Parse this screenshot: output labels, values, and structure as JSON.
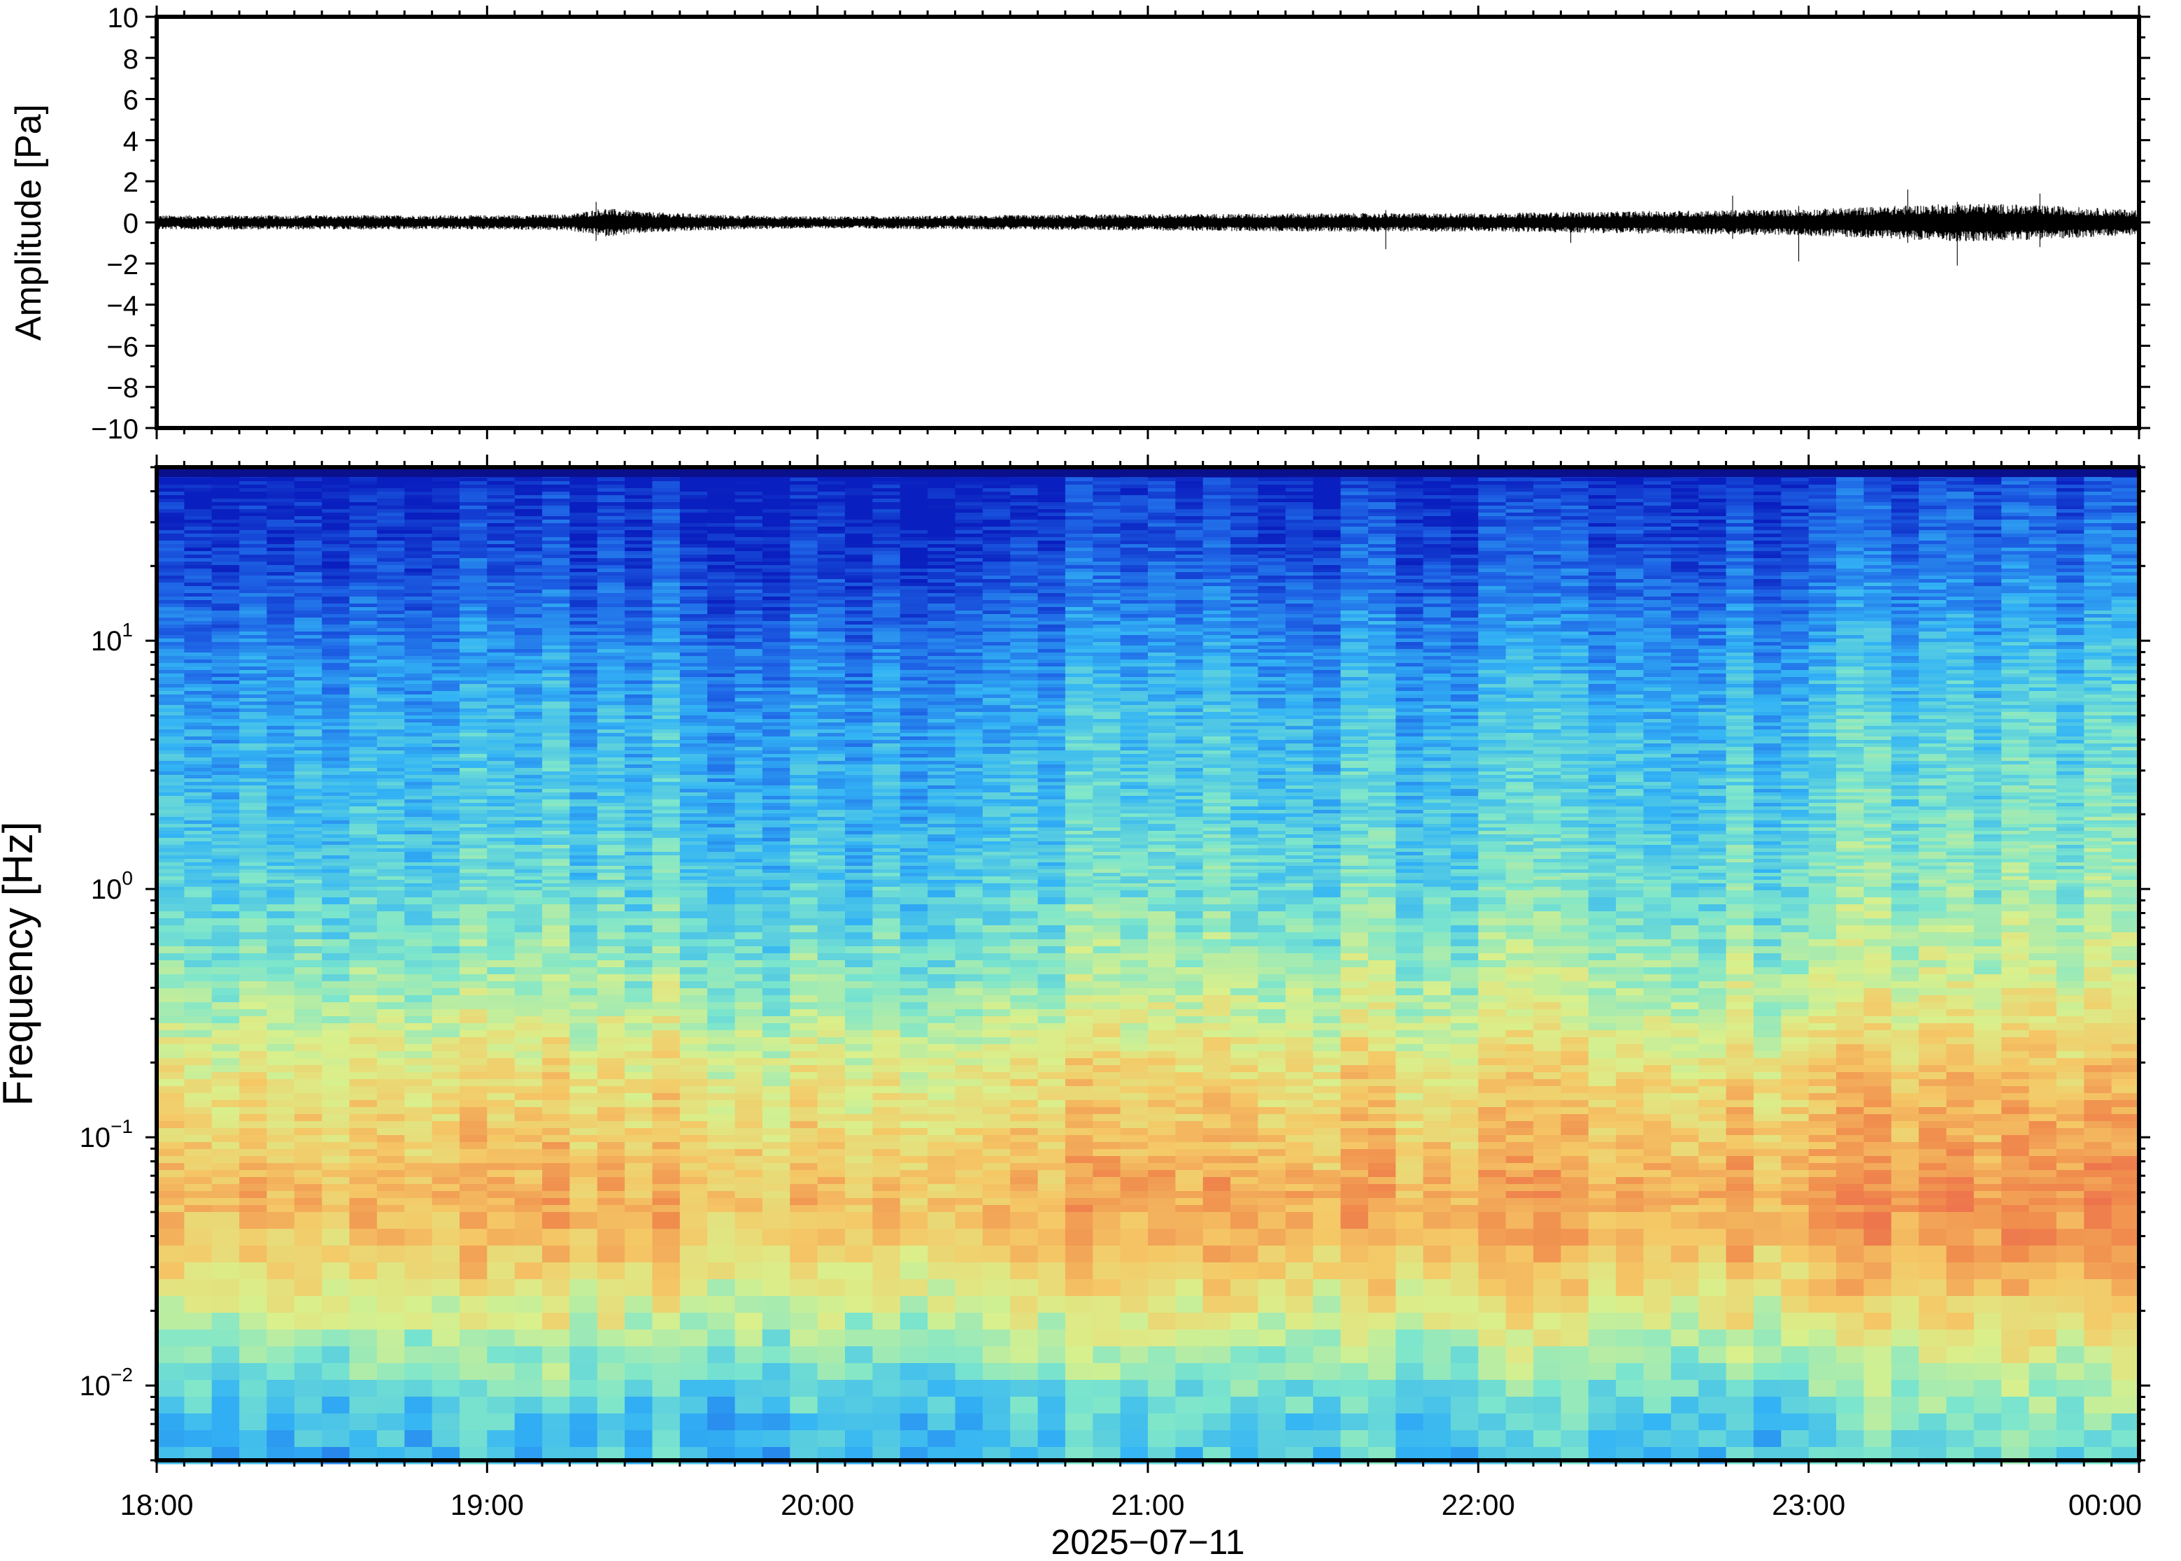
{
  "chart_data": [
    {
      "type": "line",
      "panel": "waveform",
      "ylabel": "Amplitude [Pa]",
      "ylim": [
        -10,
        10
      ],
      "y_ticks": [
        10,
        8,
        6,
        4,
        2,
        0,
        -2,
        -4,
        -6,
        -8,
        -10
      ],
      "y_tick_labels": [
        "10",
        "8",
        "6",
        "4",
        "2",
        "0",
        "−2",
        "−4",
        "−6",
        "−8",
        "−10"
      ],
      "x_range_hours": [
        18,
        24
      ],
      "envelope": {
        "x_hours": [
          18.0,
          18.5,
          19.0,
          19.25,
          19.35,
          19.5,
          19.75,
          20.0,
          20.5,
          21.0,
          21.5,
          22.0,
          22.5,
          23.0,
          23.25,
          23.5,
          23.75,
          24.0
        ],
        "amplitude_pa": [
          0.35,
          0.35,
          0.35,
          0.4,
          0.7,
          0.5,
          0.35,
          0.3,
          0.35,
          0.4,
          0.45,
          0.45,
          0.55,
          0.65,
          0.8,
          0.95,
          0.8,
          0.6
        ]
      },
      "spikes": [
        {
          "x_hours": 19.33,
          "min": -0.9,
          "max": 1.0
        },
        {
          "x_hours": 21.72,
          "min": -1.3,
          "max": 0.6
        },
        {
          "x_hours": 22.28,
          "min": -1.0,
          "max": 0.5
        },
        {
          "x_hours": 22.77,
          "min": -0.8,
          "max": 1.3
        },
        {
          "x_hours": 22.97,
          "min": -1.9,
          "max": 0.8
        },
        {
          "x_hours": 23.3,
          "min": -1.0,
          "max": 1.6
        },
        {
          "x_hours": 23.45,
          "min": -2.1,
          "max": 1.0
        },
        {
          "x_hours": 23.7,
          "min": -1.2,
          "max": 1.4
        }
      ]
    },
    {
      "type": "heatmap",
      "panel": "spectrogram",
      "ylabel": "Frequency [Hz]",
      "y_scale": "log",
      "ylim": [
        0.005,
        50
      ],
      "y_ticks": [
        10,
        1,
        0.1,
        0.01
      ],
      "y_tick_labels": [
        {
          "base": "10",
          "exp": "1"
        },
        {
          "base": "10",
          "exp": "0"
        },
        {
          "base": "10",
          "exp": "−1"
        },
        {
          "base": "10",
          "exp": "−2"
        }
      ],
      "x_range_hours": [
        18,
        24
      ],
      "time_bins": 72,
      "colormap": "blue (low) → cyan → yellow → red (high)",
      "colormap_stops": [
        "#0a1fbf",
        "#1e64e6",
        "#33b4f5",
        "#7de6cc",
        "#d9f08c",
        "#f5c866",
        "#f08c4d",
        "#eb5a4d"
      ],
      "relative_power_profile": {
        "frequency_hz": [
          50,
          40,
          20,
          10,
          5,
          2,
          1,
          0.5,
          0.3,
          0.2,
          0.1,
          0.06,
          0.04,
          0.02,
          0.012,
          0.008,
          0.005
        ],
        "level": [
          0.0,
          0.05,
          0.12,
          0.22,
          0.3,
          0.35,
          0.4,
          0.48,
          0.56,
          0.64,
          0.72,
          0.78,
          0.74,
          0.58,
          0.45,
          0.36,
          0.32
        ]
      },
      "quieter_hours": [
        [
          19.7,
          20.5
        ]
      ],
      "louder_hours": [
        [
          23.0,
          24.0
        ]
      ]
    }
  ],
  "x_axis": {
    "tick_labels": [
      "18:00",
      "19:00",
      "20:00",
      "21:00",
      "22:00",
      "23:00",
      "00:00"
    ],
    "date_label": "2025−07−11"
  }
}
